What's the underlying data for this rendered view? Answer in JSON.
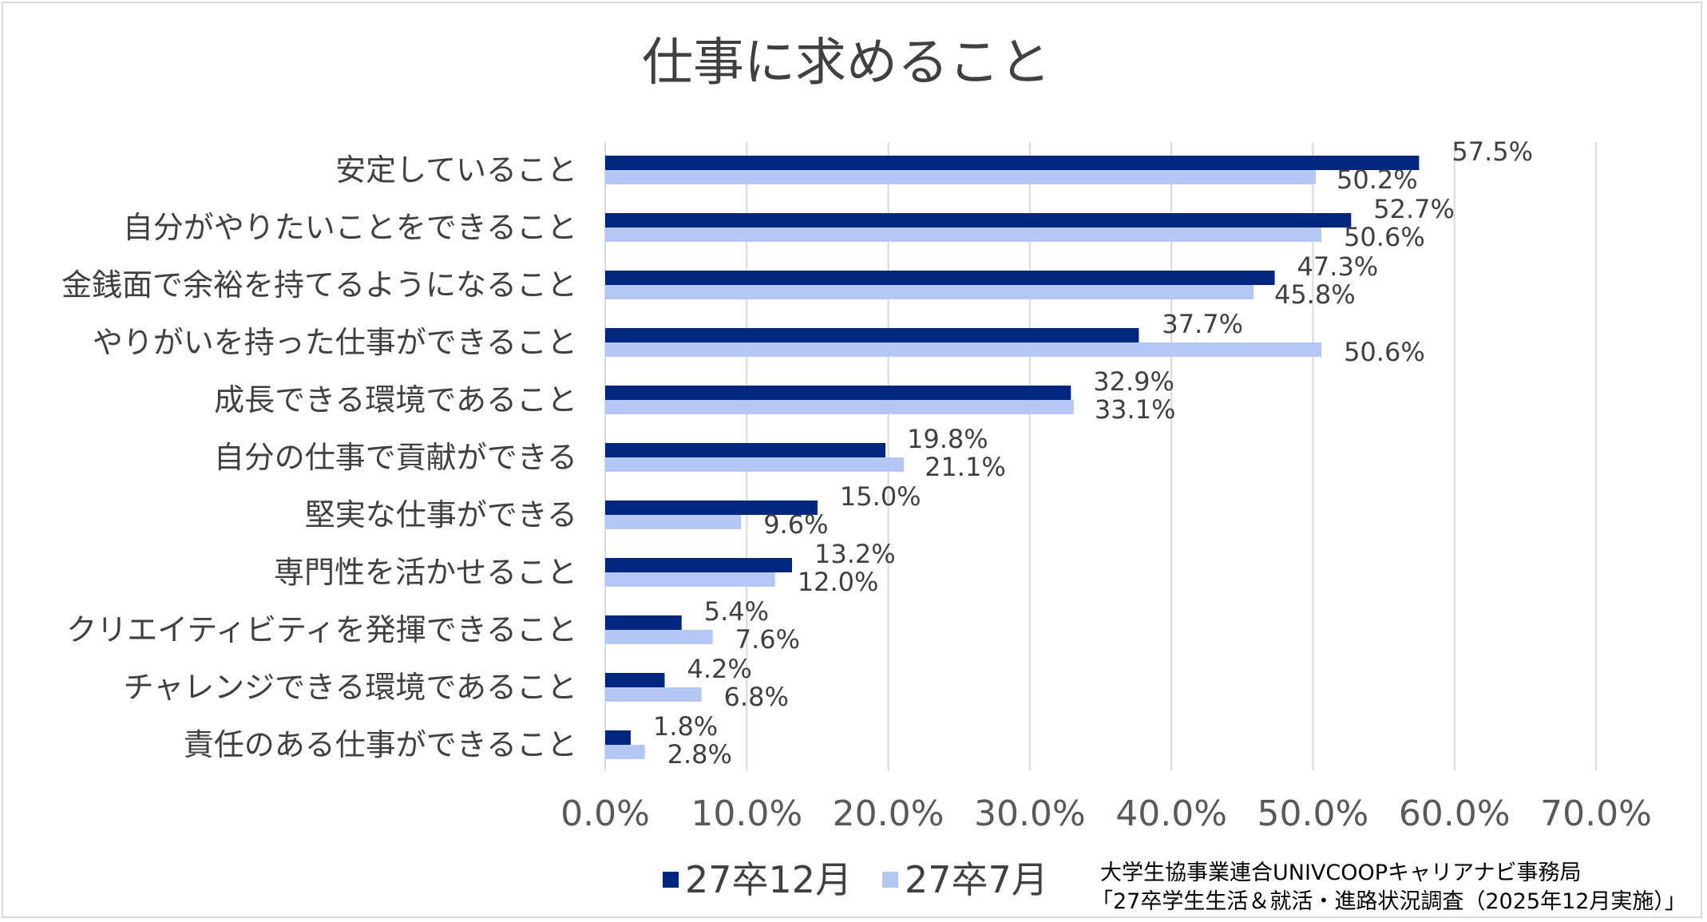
{
  "chart_data": {
    "type": "bar",
    "orientation": "horizontal",
    "title": "仕事に求めること",
    "categories": [
      "安定していること",
      "自分がやりたいことをできること",
      "金銭面で余裕を持てるようになること",
      "やりがいを持った仕事ができること",
      "成長できる環境であること",
      "自分の仕事で貢献ができる",
      "堅実な仕事ができる",
      "専門性を活かせること",
      "クリエイティビティを発揮できること",
      "チャレンジできる環境であること",
      "責任のある仕事ができること"
    ],
    "series": [
      {
        "name": "27卒12月",
        "color": "#002680",
        "values": [
          57.5,
          52.7,
          47.3,
          37.7,
          32.9,
          19.8,
          15.0,
          13.2,
          5.4,
          4.2,
          1.8
        ],
        "labels": [
          "57.5%",
          "52.7%",
          "47.3%",
          "37.7%",
          "32.9%",
          "19.8%",
          "15.0%",
          "13.2%",
          "5.4%",
          "4.2%",
          "1.8%"
        ]
      },
      {
        "name": "27卒7月",
        "color": "#b4c7f5",
        "values": [
          50.2,
          50.6,
          45.8,
          50.6,
          33.1,
          21.1,
          9.6,
          12.0,
          7.6,
          6.8,
          2.8
        ],
        "labels": [
          "50.2%",
          "50.6%",
          "45.8%",
          "50.6%",
          "33.1%",
          "21.1%",
          "9.6%",
          "12.0%",
          "7.6%",
          "6.8%",
          "2.8%"
        ]
      }
    ],
    "xlim": [
      0,
      70
    ],
    "xticks": [
      0,
      10,
      20,
      30,
      40,
      50,
      60,
      70
    ],
    "xtick_labels": [
      "0.0%",
      "10.0%",
      "20.0%",
      "30.0%",
      "40.0%",
      "50.0%",
      "60.0%",
      "70.0%"
    ],
    "grid": true,
    "legend_position": "bottom",
    "source_lines": [
      "大学生協事業連合UNIVCOOPキャリアナビ事務局",
      "「27卒学生生活＆就活・進路状況調査（2025年12月実施）」"
    ]
  }
}
